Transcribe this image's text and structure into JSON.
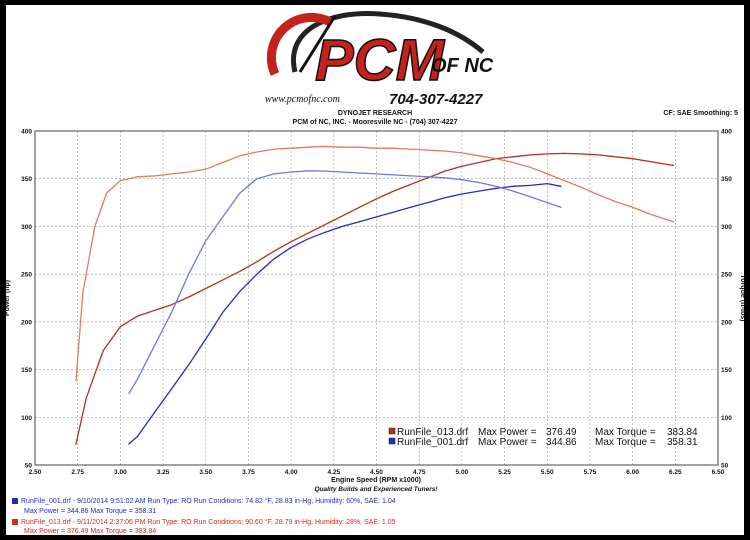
{
  "header": {
    "brand_name": "PCM",
    "brand_suffix": "OF NC",
    "website": "www.pcmofnc.com",
    "phone": "704-307-4227",
    "research_label": "DYNOJET RESEARCH",
    "company_line": "PCM of NC, INC. - Mooresville NC - (704) 307-4227",
    "cf_line": "CF: SAE  Smoothing: 5",
    "subtitle": "Quality Builds and Experienced Tuners!"
  },
  "colors": {
    "blue": "#1f2ec2",
    "blue_light": "#6f78e0",
    "red": "#b2301c",
    "red_light": "#e07a60",
    "logo_red": "#c4231c"
  },
  "legend": [
    {
      "file": "RunFile_013.drf",
      "max_power_label": "Max Power =",
      "max_power": "376.49",
      "max_torque_label": "Max Torque =",
      "max_torque": "383.84",
      "color": "#b2301c"
    },
    {
      "file": "RunFile_001.drf",
      "max_power_label": "Max Power =",
      "max_power": "344.86",
      "max_torque_label": "Max Torque =",
      "max_torque": "358.31",
      "color": "#1f2ec2"
    }
  ],
  "runs": [
    {
      "line1": "RunFile_001.drf - 9/10/2014 9:51:02 AM  Run Type: RO  Run Conditions: 74.82 °F, 28.83 in-Hg,  Humidity:  60%, SAE: 1.04",
      "line2": "Max Power = 344.86  Max Torque = 358.31",
      "color": "#1f2ec2"
    },
    {
      "line1": "RunFile_013.drf - 9/11/2014 2:37:06 PM  Run Type: RO  Run Conditions: 90.60 °F, 28.79 in-Hg,  Humidity:  28%, SAE: 1.05",
      "line2": "Max Power = 376.49  Max Torque = 383.84",
      "color": "#d02a1e"
    }
  ],
  "chart_data": {
    "type": "line",
    "xlabel": "Engine Speed (RPM x1000)",
    "ylabel": "Power (hp)",
    "y2label": "Torque (ft-lbs)",
    "xlim": [
      2.5,
      6.5
    ],
    "ylim": [
      50,
      400
    ],
    "y2lim": [
      50,
      400
    ],
    "xticks": [
      "2.50",
      "2.75",
      "3.00",
      "3.25",
      "3.50",
      "3.75",
      "4.00",
      "4.25",
      "4.50",
      "4.75",
      "5.00",
      "5.25",
      "5.50",
      "5.75",
      "6.00",
      "6.25",
      "6.50"
    ],
    "yticks": [
      "50",
      "100",
      "150",
      "200",
      "250",
      "300",
      "350",
      "400"
    ],
    "grid": true,
    "legend_position": "bottom-right",
    "series": [
      {
        "name": "RunFile_013.drf Power",
        "file": "RunFile_013.drf",
        "measure": "power",
        "color": "#b2301c",
        "x": [
          2.74,
          2.8,
          2.9,
          3.0,
          3.1,
          3.2,
          3.3,
          3.4,
          3.5,
          3.6,
          3.7,
          3.8,
          3.9,
          4.0,
          4.1,
          4.2,
          4.3,
          4.4,
          4.5,
          4.6,
          4.7,
          4.8,
          4.9,
          5.0,
          5.1,
          5.2,
          5.3,
          5.4,
          5.5,
          5.6,
          5.7,
          5.8,
          5.9,
          6.0,
          6.1,
          6.2,
          6.24
        ],
        "y": [
          72,
          120,
          170,
          195,
          206,
          212,
          218,
          226,
          235,
          244,
          253,
          263,
          274,
          284,
          293,
          302,
          311,
          320,
          329,
          337,
          344,
          351,
          358,
          363,
          367,
          371,
          373,
          375,
          376,
          376.49,
          376,
          375,
          373,
          371,
          368,
          365,
          364
        ]
      },
      {
        "name": "RunFile_013.drf Torque",
        "file": "RunFile_013.drf",
        "measure": "torque",
        "color": "#e07a60",
        "x": [
          2.74,
          2.78,
          2.85,
          2.92,
          3.0,
          3.1,
          3.2,
          3.3,
          3.4,
          3.5,
          3.6,
          3.7,
          3.8,
          3.9,
          4.0,
          4.1,
          4.2,
          4.3,
          4.4,
          4.5,
          4.6,
          4.7,
          4.8,
          4.9,
          5.0,
          5.1,
          5.2,
          5.3,
          5.4,
          5.5,
          5.6,
          5.7,
          5.8,
          5.9,
          6.0,
          6.1,
          6.2,
          6.24
        ],
        "y": [
          138,
          230,
          300,
          335,
          348,
          352,
          353,
          355,
          357,
          360,
          367,
          374,
          378,
          381,
          382,
          383,
          383.84,
          383,
          383,
          382,
          382,
          381,
          380,
          379,
          377,
          374,
          371,
          367,
          362,
          355,
          348,
          341,
          333,
          326,
          320,
          313,
          307,
          305
        ]
      },
      {
        "name": "RunFile_001.drf Power",
        "file": "RunFile_001.drf",
        "measure": "power",
        "color": "#1f2ec2",
        "x": [
          3.05,
          3.1,
          3.2,
          3.3,
          3.4,
          3.5,
          3.6,
          3.7,
          3.8,
          3.9,
          4.0,
          4.1,
          4.2,
          4.3,
          4.4,
          4.5,
          4.6,
          4.7,
          4.8,
          4.9,
          5.0,
          5.1,
          5.2,
          5.3,
          5.4,
          5.5,
          5.58
        ],
        "y": [
          72,
          80,
          105,
          130,
          155,
          182,
          210,
          232,
          250,
          266,
          278,
          287,
          294,
          300,
          305,
          310,
          315,
          320,
          325,
          330,
          334,
          337,
          340,
          342,
          343,
          344.86,
          342
        ]
      },
      {
        "name": "RunFile_001.drf Torque",
        "file": "RunFile_001.drf",
        "measure": "torque",
        "color": "#6f78e0",
        "x": [
          3.05,
          3.1,
          3.2,
          3.3,
          3.4,
          3.5,
          3.6,
          3.7,
          3.8,
          3.9,
          4.0,
          4.1,
          4.2,
          4.3,
          4.4,
          4.5,
          4.6,
          4.7,
          4.8,
          4.9,
          5.0,
          5.1,
          5.2,
          5.3,
          5.4,
          5.5,
          5.58
        ],
        "y": [
          125,
          140,
          175,
          210,
          250,
          285,
          310,
          335,
          350,
          355,
          357,
          358.31,
          358,
          357,
          356,
          355,
          354,
          353,
          352,
          351,
          349,
          346,
          342,
          337,
          331,
          325,
          320
        ]
      }
    ]
  }
}
